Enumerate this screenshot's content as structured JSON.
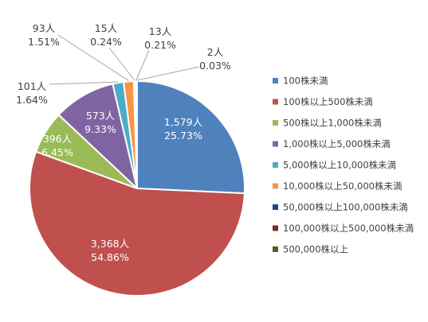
{
  "chart_data": {
    "type": "pie",
    "title": "",
    "legend_position": "right",
    "slices": [
      {
        "name": "100株未満",
        "count": 1579,
        "count_label": "1,579人",
        "percent": 25.73,
        "percent_label": "25.73%",
        "color": "#4f81bd"
      },
      {
        "name": "100株以上500株未満",
        "count": 3368,
        "count_label": "3,368人",
        "percent": 54.86,
        "percent_label": "54.86%",
        "color": "#c0504d"
      },
      {
        "name": "500株以上1,000株未満",
        "count": 396,
        "count_label": "396人",
        "percent": 6.45,
        "percent_label": "6.45%",
        "color": "#9bbb59"
      },
      {
        "name": "1,000株以上5,000株未満",
        "count": 573,
        "count_label": "573人",
        "percent": 9.33,
        "percent_label": "9.33%",
        "color": "#8064a2"
      },
      {
        "name": "5,000株以上10,000株未満",
        "count": 101,
        "count_label": "101人",
        "percent": 1.64,
        "percent_label": "1.64%",
        "color": "#4bacc6"
      },
      {
        "name": "10,000株以上50,000株未満",
        "count": 93,
        "count_label": "93人",
        "percent": 1.51,
        "percent_label": "1.51%",
        "color": "#f79646"
      },
      {
        "name": "50,000株以上100,000株未満",
        "count": 15,
        "count_label": "15人",
        "percent": 0.24,
        "percent_label": "0.24%",
        "color": "#1f497d"
      },
      {
        "name": "100,000株以上500,000株未満",
        "count": 13,
        "count_label": "13人",
        "percent": 0.21,
        "percent_label": "0.21%",
        "color": "#772c2a"
      },
      {
        "name": "500,000株以上",
        "count": 2,
        "count_label": "2人",
        "percent": 0.03,
        "percent_label": "0.03%",
        "color": "#4f6228"
      }
    ]
  }
}
